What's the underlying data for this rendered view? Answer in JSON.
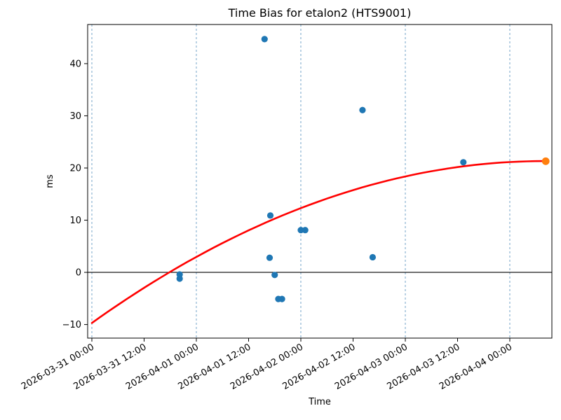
{
  "chart_data": {
    "type": "scatter",
    "title": "Time Bias for etalon2 (HTS9001)",
    "xlabel": "Time",
    "ylabel": "ms",
    "x_epoch": "2026-03-31 00:00",
    "xlim": [
      "2026-03-30 23:02",
      "2026-04-04 09:40"
    ],
    "ylim": [
      -12.6,
      47.5
    ],
    "y_ticks": [
      {
        "value": -10,
        "label": "−10"
      },
      {
        "value": 0,
        "label": "0"
      },
      {
        "value": 10,
        "label": "10"
      },
      {
        "value": 20,
        "label": "20"
      },
      {
        "value": 30,
        "label": "30"
      },
      {
        "value": 40,
        "label": "40"
      }
    ],
    "x_ticks": [
      "2026-03-31 00:00",
      "2026-03-31 12:00",
      "2026-04-01 00:00",
      "2026-04-01 12:00",
      "2026-04-02 00:00",
      "2026-04-02 12:00",
      "2026-04-03 00:00",
      "2026-04-03 12:00",
      "2026-04-04 00:00"
    ],
    "gridlines_x": [
      "2026-03-31 00:00",
      "2026-04-01 00:00",
      "2026-04-02 00:00",
      "2026-04-03 00:00",
      "2026-04-04 00:00"
    ],
    "zero_line": true,
    "colors": {
      "scatter": "#1f77b4",
      "fit": "#ff0000",
      "prediction": "#ff7f0e",
      "grid": "#74a4c8",
      "axis": "#000000"
    },
    "points": [
      {
        "time": "2026-03-31 20:10",
        "ms": -0.4
      },
      {
        "time": "2026-03-31 20:10",
        "ms": -1.2
      },
      {
        "time": "2026-04-01 15:40",
        "ms": 44.7
      },
      {
        "time": "2026-04-01 17:00",
        "ms": 10.9
      },
      {
        "time": "2026-04-01 16:50",
        "ms": 2.8
      },
      {
        "time": "2026-04-01 18:00",
        "ms": -0.5
      },
      {
        "time": "2026-04-01 18:50",
        "ms": -5.1
      },
      {
        "time": "2026-04-01 19:40",
        "ms": -5.1
      },
      {
        "time": "2026-04-02 00:00",
        "ms": 8.1
      },
      {
        "time": "2026-04-02 01:00",
        "ms": 8.1
      },
      {
        "time": "2026-04-02 14:10",
        "ms": 31.1
      },
      {
        "time": "2026-04-02 16:30",
        "ms": 2.9
      },
      {
        "time": "2026-04-03 13:20",
        "ms": 21.1
      }
    ],
    "prediction_point": {
      "time": "2026-04-04 08:15",
      "ms": 21.3
    },
    "fit_curve": {
      "hours_from": "2026-03-31 00:00",
      "samples_hours_ms": [
        [
          0,
          -9.7
        ],
        [
          2,
          -8.52
        ],
        [
          4,
          -7.36
        ],
        [
          6,
          -6.23
        ],
        [
          8,
          -5.11
        ],
        [
          10,
          -4.03
        ],
        [
          12,
          -2.96
        ],
        [
          14,
          -1.92
        ],
        [
          16,
          -0.9
        ],
        [
          18,
          0.1
        ],
        [
          20,
          1.08
        ],
        [
          22,
          2.03
        ],
        [
          24,
          2.95
        ],
        [
          26,
          3.86
        ],
        [
          28,
          4.74
        ],
        [
          30,
          5.6
        ],
        [
          32,
          6.44
        ],
        [
          34,
          7.25
        ],
        [
          36,
          8.04
        ],
        [
          38,
          8.81
        ],
        [
          40,
          9.56
        ],
        [
          42,
          10.28
        ],
        [
          44,
          10.98
        ],
        [
          46,
          11.66
        ],
        [
          48,
          12.31
        ],
        [
          50,
          12.94
        ],
        [
          52,
          13.55
        ],
        [
          54,
          14.14
        ],
        [
          56,
          14.7
        ],
        [
          58,
          15.24
        ],
        [
          60,
          15.76
        ],
        [
          62,
          16.25
        ],
        [
          64,
          16.73
        ],
        [
          66,
          17.17
        ],
        [
          68,
          17.6
        ],
        [
          70,
          18.0
        ],
        [
          72,
          18.38
        ],
        [
          74,
          18.74
        ],
        [
          76,
          19.07
        ],
        [
          78,
          19.38
        ],
        [
          80,
          19.67
        ],
        [
          82,
          19.93
        ],
        [
          84,
          20.17
        ],
        [
          86,
          20.39
        ],
        [
          88,
          20.59
        ],
        [
          90,
          20.76
        ],
        [
          92,
          20.91
        ],
        [
          94,
          21.04
        ],
        [
          96,
          21.14
        ],
        [
          98,
          21.22
        ],
        [
          100,
          21.28
        ],
        [
          102,
          21.31
        ],
        [
          104.25,
          21.33
        ]
      ]
    }
  }
}
